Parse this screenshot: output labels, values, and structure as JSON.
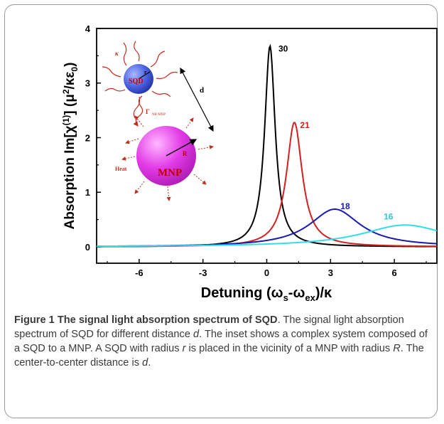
{
  "chart_data": {
    "type": "line",
    "xlabel": "Detuning (ω_s-ω_ex)/κ",
    "ylabel": "Absorption Im[χ(1)] (μ2/κε0)",
    "xlim": [
      -8,
      8
    ],
    "ylim": [
      -0.3,
      4
    ],
    "xticks": [
      -6,
      -3,
      0,
      3,
      6
    ],
    "yticks": [
      0,
      1,
      2,
      3,
      4
    ],
    "series": [
      {
        "name": "30",
        "color": "#000000",
        "peak_x": 0.15,
        "peak_y": 3.68,
        "hwhm": 0.3
      },
      {
        "name": "21",
        "color": "#d42020",
        "peak_x": 1.3,
        "peak_y": 2.28,
        "hwhm": 0.45
      },
      {
        "name": "18",
        "color": "#1a1ab0",
        "peak_x": 3.2,
        "peak_y": 0.69,
        "hwhm": 1.45
      },
      {
        "name": "16",
        "color": "#33dde8",
        "peak_x": 6.5,
        "peak_y": 0.4,
        "hwhm": 2.5
      }
    ]
  },
  "inset": {
    "sqd_label": "SQD",
    "mnp_label": "MNP",
    "small_radius": "r",
    "large_radius": "R",
    "distance": "d",
    "kappa": "κ",
    "gamma": "Γ",
    "heat": "Heat",
    "sphere_small_color": "#4a62e0",
    "sphere_large_color": "#e23ae6",
    "ray_color": "#c03020"
  },
  "caption": {
    "title": "Figure 1 The signal light absorption spectrum of SQD",
    "text_1": ". The signal light absorption spectrum of SQD for different distance ",
    "d1": "d",
    "text_2": ". The inset shows a complex system composed of a SQD to a MNP. A SQD with radius ",
    "r": "r",
    "text_3": " is placed in the vicinity of a MNP with radius ",
    "R": "R",
    "text_4": ". The center-to-center distance is ",
    "d2": "d",
    "text_5": "."
  }
}
